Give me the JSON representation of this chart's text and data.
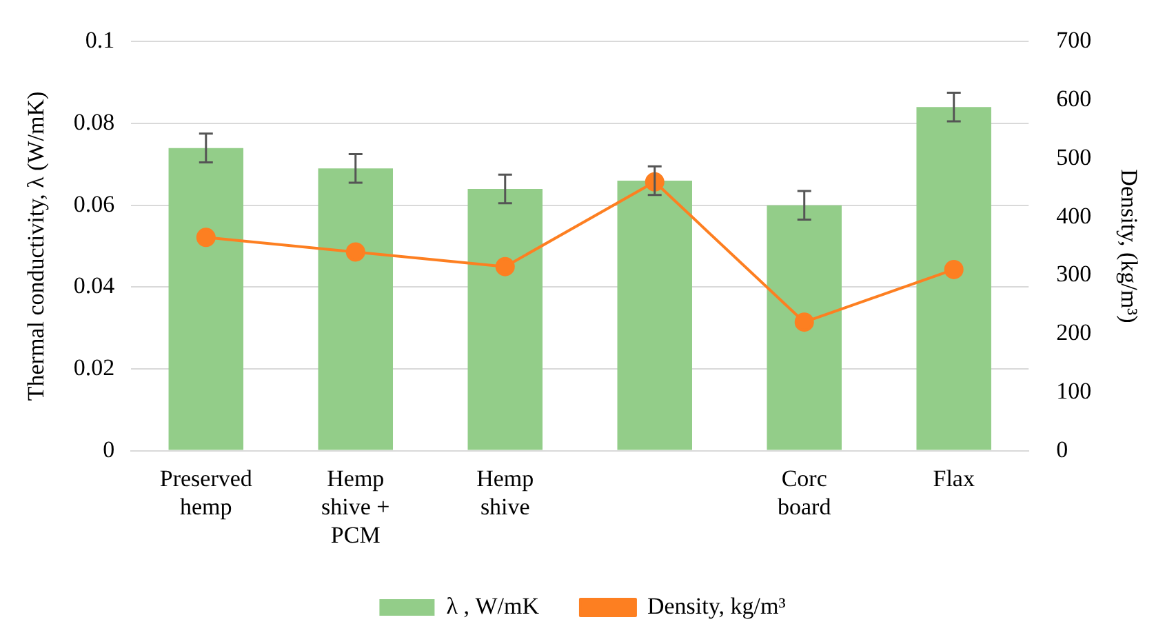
{
  "chart_data": {
    "type": "bar",
    "categories": [
      "Preserved\nhemp",
      "Hemp\nshive +\nPCM",
      "Hemp\nshive",
      null,
      "Corc\nboard",
      "Flax"
    ],
    "series": [
      {
        "name": "λ , W/mK",
        "color": "#93cd89",
        "values": [
          0.074,
          0.069,
          0.064,
          0.066,
          0.06,
          0.084
        ],
        "errors": [
          0.0035,
          0.0035,
          0.0035,
          0.0035,
          0.0035,
          0.0035
        ]
      },
      {
        "name": "Density, kg/m³",
        "type": "line",
        "axis": "y2",
        "color": "#fd7f21",
        "values": [
          365,
          340,
          315,
          460,
          220,
          310
        ],
        "marker": "circle"
      }
    ],
    "ylabel": "Thermal conductivity, λ (W/mK)",
    "y2label": "Density, (kg/m³)",
    "ylim": [
      0,
      0.1
    ],
    "yticks": [
      0,
      0.02,
      0.04,
      0.06,
      0.08,
      0.1
    ],
    "y2lim": [
      0,
      700
    ],
    "y2ticks": [
      0,
      100,
      200,
      300,
      400,
      500,
      600,
      700
    ],
    "grid": "y",
    "legend": "bottom"
  }
}
